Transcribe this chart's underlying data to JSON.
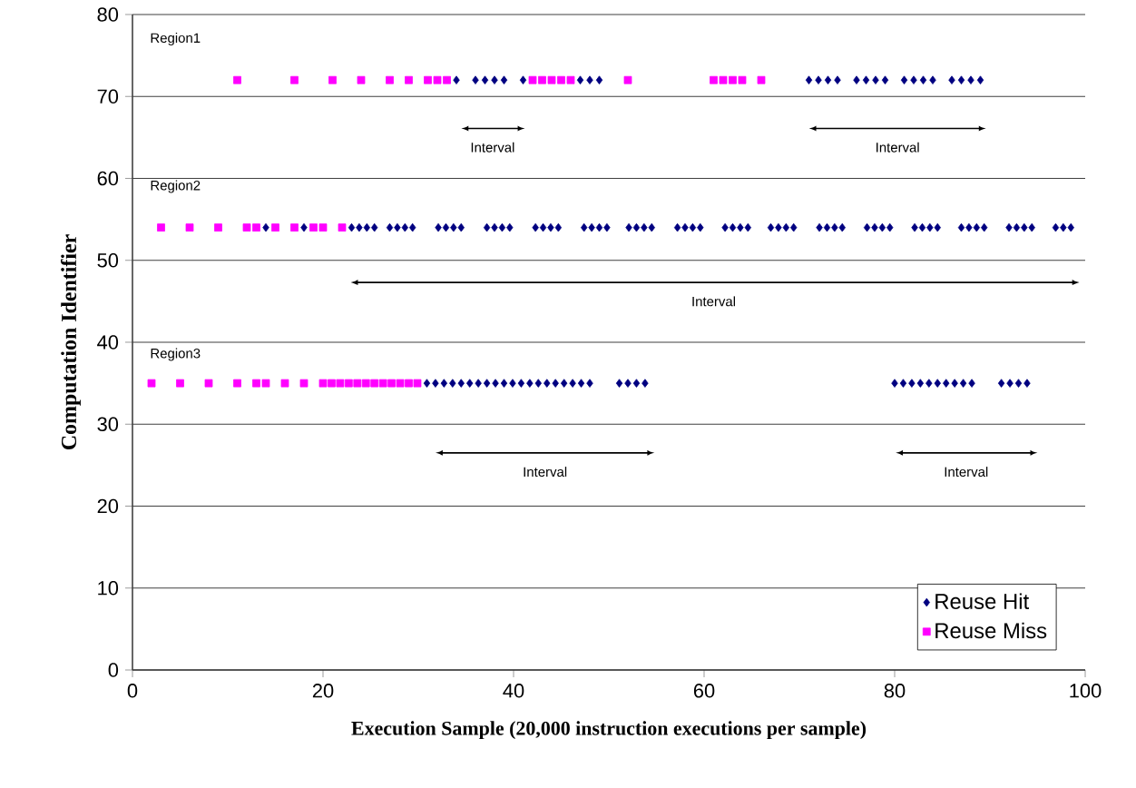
{
  "chart_data": {
    "type": "scatter",
    "xlabel": "Execution Sample (20,000 instruction executions per sample)",
    "ylabel": "Computation Identifier",
    "xlim": [
      0,
      100
    ],
    "ylim": [
      0,
      80
    ],
    "xticks": [
      0,
      20,
      40,
      60,
      80,
      100
    ],
    "yticks": [
      0,
      10,
      20,
      30,
      40,
      50,
      60,
      70,
      80
    ],
    "grid": "y",
    "legend": "bottom right",
    "series": [
      {
        "name": "Reuse Hit",
        "marker": "diamond",
        "color": "#000080",
        "x": [
          34,
          36,
          37,
          38,
          39,
          41,
          47,
          48,
          49,
          71,
          72,
          73,
          74,
          76,
          77,
          78,
          79,
          81,
          82,
          83,
          84,
          86,
          87,
          88,
          89
        ],
        "values": [
          72,
          72,
          72,
          72,
          72,
          72,
          72,
          72,
          72,
          72,
          72,
          72,
          72,
          72,
          72,
          72,
          72,
          72,
          72,
          72,
          72,
          72,
          72,
          72,
          72
        ]
      },
      {
        "name": "Reuse Miss",
        "marker": "square",
        "color": "#ff00ff",
        "x": [
          11,
          17,
          21,
          24,
          27,
          29,
          31,
          32,
          33,
          42,
          43,
          44,
          45,
          46,
          52,
          61,
          62,
          63,
          64,
          66
        ],
        "values": [
          72,
          72,
          72,
          72,
          72,
          72,
          72,
          72,
          72,
          72,
          72,
          72,
          72,
          72,
          72,
          72,
          72,
          72,
          72,
          72
        ]
      },
      {
        "marker": "diamond",
        "color": "#000080",
        "x": [
          14,
          18,
          23,
          23.8,
          24.6,
          25.4,
          27,
          27.8,
          28.6,
          29.4,
          32.1,
          32.9,
          33.7,
          34.5,
          37.2,
          38,
          38.8,
          39.6,
          42.3,
          43.1,
          43.9,
          44.7,
          47.4,
          48.2,
          49,
          49.8,
          52.1,
          52.9,
          53.7,
          54.5,
          57.2,
          58,
          58.8,
          59.6,
          62.2,
          63,
          63.8,
          64.6,
          67,
          67.8,
          68.6,
          69.4,
          72.1,
          72.9,
          73.7,
          74.5,
          77.1,
          77.9,
          78.7,
          79.5,
          82.1,
          82.9,
          83.7,
          84.5,
          87,
          87.8,
          88.6,
          89.4,
          92,
          92.8,
          93.6,
          94.4,
          96.9,
          97.7,
          98.5
        ],
        "values": [
          54,
          54,
          54,
          54,
          54,
          54,
          54,
          54,
          54,
          54,
          54,
          54,
          54,
          54,
          54,
          54,
          54,
          54,
          54,
          54,
          54,
          54,
          54,
          54,
          54,
          54,
          54,
          54,
          54,
          54,
          54,
          54,
          54,
          54,
          54,
          54,
          54,
          54,
          54,
          54,
          54,
          54,
          54,
          54,
          54,
          54,
          54,
          54,
          54,
          54,
          54,
          54,
          54,
          54,
          54,
          54,
          54,
          54,
          54,
          54,
          54,
          54,
          54,
          54,
          54
        ]
      },
      {
        "marker": "square",
        "color": "#ff00ff",
        "x": [
          3,
          6,
          9,
          12,
          13,
          15,
          17,
          19,
          20,
          22
        ],
        "values": [
          54,
          54,
          54,
          54,
          54,
          54,
          54,
          54,
          54,
          54
        ]
      },
      {
        "marker": "diamond",
        "color": "#000080",
        "x": [
          30.9,
          31.8,
          32.7,
          33.6,
          34.5,
          35.4,
          36.3,
          37.2,
          38.1,
          39,
          39.9,
          40.8,
          41.7,
          42.6,
          43.5,
          44.4,
          45.3,
          46.2,
          47.1,
          48,
          51.1,
          52,
          52.9,
          53.8,
          80,
          80.9,
          81.8,
          82.7,
          83.6,
          84.5,
          85.4,
          86.3,
          87.2,
          88.1,
          91.2,
          92.1,
          93,
          93.9
        ],
        "values": [
          35,
          35,
          35,
          35,
          35,
          35,
          35,
          35,
          35,
          35,
          35,
          35,
          35,
          35,
          35,
          35,
          35,
          35,
          35,
          35,
          35,
          35,
          35,
          35,
          35,
          35,
          35,
          35,
          35,
          35,
          35,
          35,
          35,
          35,
          35,
          35,
          35,
          35
        ]
      },
      {
        "marker": "square",
        "color": "#ff00ff",
        "x": [
          2,
          5,
          8,
          11,
          13,
          14,
          16,
          18,
          20,
          20.9,
          21.8,
          22.7,
          23.6,
          24.5,
          25.4,
          26.3,
          27.2,
          28.1,
          29,
          29.9
        ],
        "values": [
          35,
          35,
          35,
          35,
          35,
          35,
          35,
          35,
          35,
          35,
          35,
          35,
          35,
          35,
          35,
          35,
          35,
          35,
          35,
          35
        ]
      }
    ],
    "annotations": [
      "Region1",
      "Interval",
      "Interval",
      "Region2",
      "Interval",
      "Region3",
      "Interval",
      "Interval"
    ]
  }
}
